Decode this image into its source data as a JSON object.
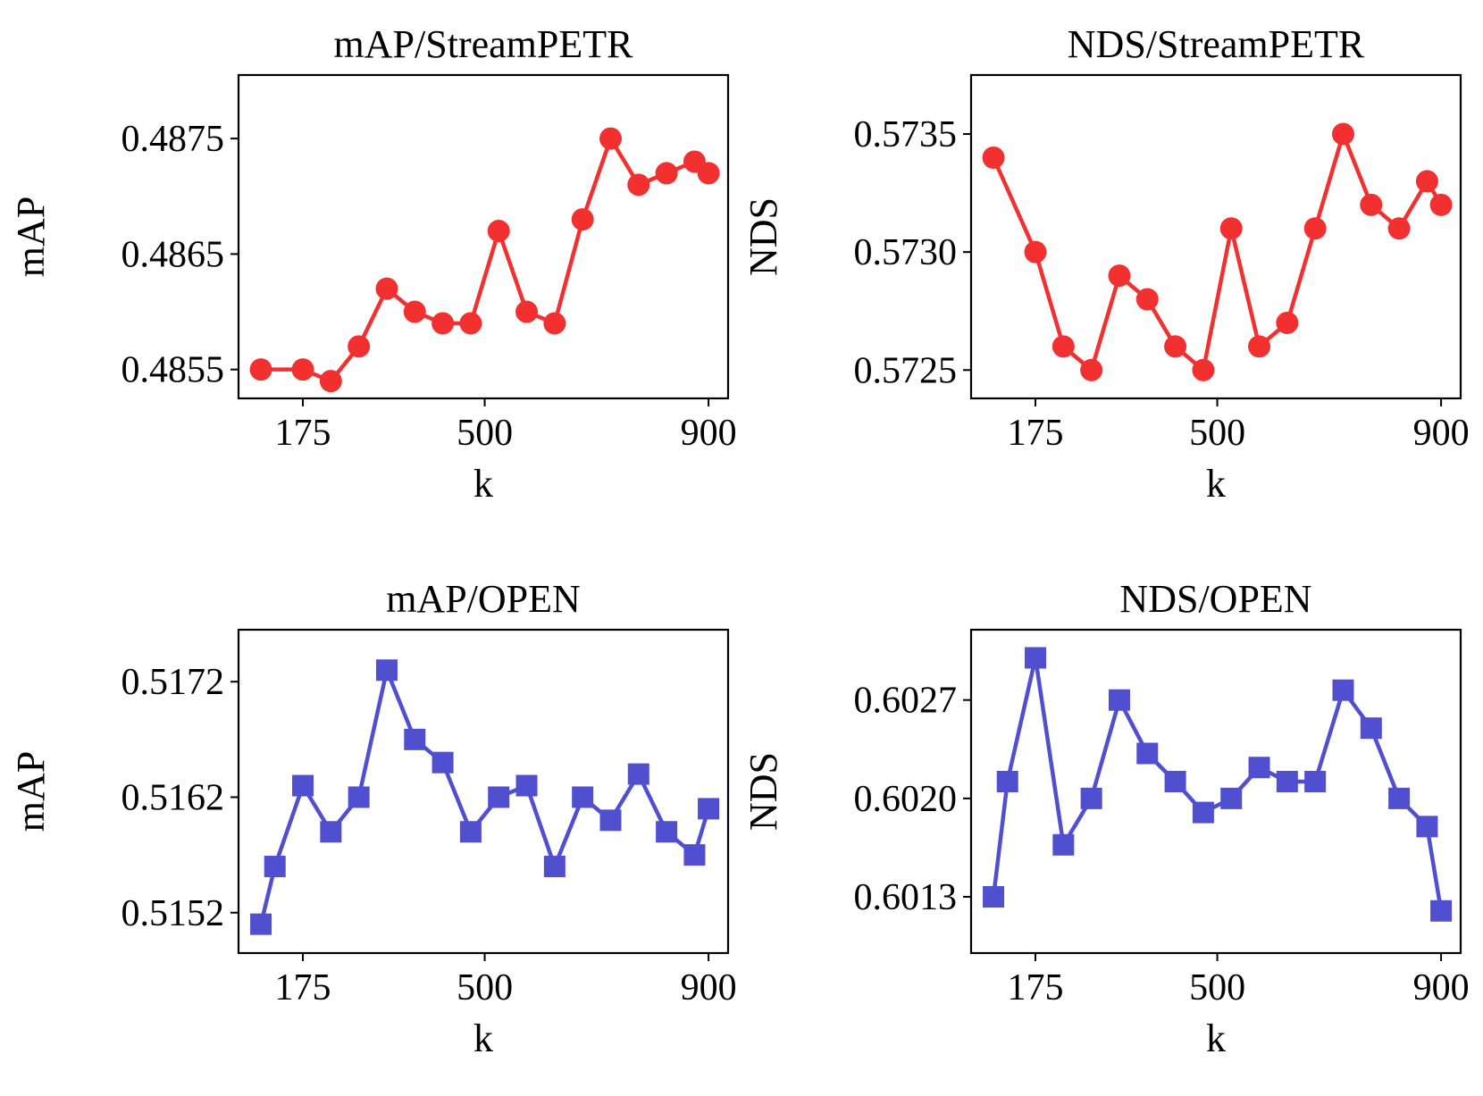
{
  "chart_data": [
    {
      "type": "line",
      "title": "mAP/StreamPETR",
      "xlabel": "k",
      "ylabel": "mAP",
      "grid": false,
      "marker": "circle",
      "color": "#F23030",
      "x": [
        100,
        175,
        225,
        275,
        325,
        375,
        425,
        475,
        525,
        575,
        625,
        675,
        725,
        775,
        825,
        875,
        900
      ],
      "y": [
        0.4855,
        0.4855,
        0.4854,
        0.4857,
        0.4862,
        0.486,
        0.4859,
        0.4859,
        0.4867,
        0.486,
        0.4859,
        0.4868,
        0.4875,
        0.4871,
        0.4872,
        0.4873,
        0.4872
      ],
      "xlim": [
        60,
        935
      ],
      "ylim": [
        0.48525,
        0.48805
      ],
      "xticks": [
        175,
        500,
        900
      ],
      "yticks": [
        0.4855,
        0.4865,
        0.4875
      ],
      "ytick_labels": [
        "0.4855",
        "0.4865",
        "0.4875"
      ]
    },
    {
      "type": "line",
      "title": "NDS/StreamPETR",
      "xlabel": "k",
      "ylabel": "NDS",
      "grid": false,
      "marker": "circle",
      "color": "#F23030",
      "x": [
        100,
        175,
        225,
        275,
        325,
        375,
        425,
        475,
        525,
        575,
        625,
        675,
        725,
        775,
        825,
        875,
        900
      ],
      "y": [
        0.5734,
        0.573,
        0.5726,
        0.5725,
        0.5729,
        0.5728,
        0.5726,
        0.5725,
        0.5731,
        0.5726,
        0.5727,
        0.5731,
        0.5735,
        0.5732,
        0.5731,
        0.5733,
        0.5732
      ],
      "xlim": [
        60,
        935
      ],
      "ylim": [
        0.57238,
        0.57375
      ],
      "xticks": [
        175,
        500,
        900
      ],
      "yticks": [
        0.5725,
        0.573,
        0.5735
      ],
      "ytick_labels": [
        "0.5725",
        "0.5730",
        "0.5735"
      ]
    },
    {
      "type": "line",
      "title": "mAP/OPEN",
      "xlabel": "k",
      "ylabel": "mAP",
      "grid": false,
      "marker": "square",
      "color": "#4F4FD0",
      "x": [
        100,
        125,
        175,
        225,
        275,
        325,
        375,
        425,
        475,
        525,
        575,
        625,
        675,
        725,
        775,
        825,
        875,
        900
      ],
      "y": [
        0.5151,
        0.5156,
        0.5163,
        0.5159,
        0.5162,
        0.5173,
        0.5167,
        0.5165,
        0.5159,
        0.5162,
        0.5163,
        0.5156,
        0.5162,
        0.516,
        0.5164,
        0.5159,
        0.5157,
        0.5161
      ],
      "xlim": [
        60,
        935
      ],
      "ylim": [
        0.51485,
        0.51765
      ],
      "xticks": [
        175,
        500,
        900
      ],
      "yticks": [
        0.5152,
        0.5162,
        0.5172
      ],
      "ytick_labels": [
        "0.5152",
        "0.5162",
        "0.5172"
      ]
    },
    {
      "type": "line",
      "title": "NDS/OPEN",
      "xlabel": "k",
      "ylabel": "NDS",
      "grid": false,
      "marker": "square",
      "color": "#4F4FD0",
      "x": [
        100,
        125,
        175,
        225,
        275,
        325,
        375,
        425,
        475,
        525,
        575,
        625,
        675,
        725,
        775,
        825,
        875,
        900
      ],
      "y": [
        0.6013,
        0.60212,
        0.603,
        0.60167,
        0.602,
        0.6027,
        0.60232,
        0.60212,
        0.6019,
        0.602,
        0.60222,
        0.60212,
        0.60212,
        0.60277,
        0.6025,
        0.602,
        0.6018,
        0.6012
      ],
      "xlim": [
        60,
        935
      ],
      "ylim": [
        0.6009,
        0.6032
      ],
      "xticks": [
        175,
        500,
        900
      ],
      "yticks": [
        0.6013,
        0.602,
        0.6027
      ],
      "ytick_labels": [
        "0.6013",
        "0.6020",
        "0.6027"
      ]
    }
  ]
}
